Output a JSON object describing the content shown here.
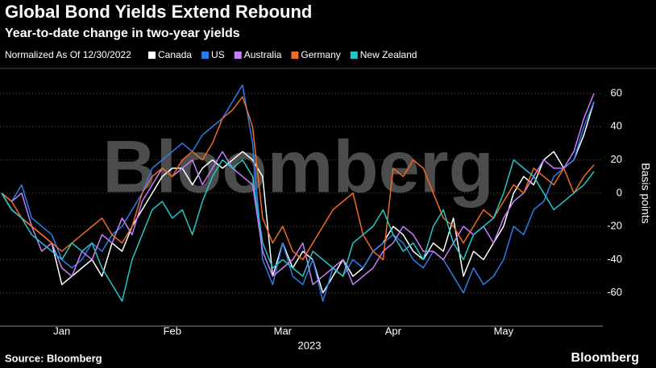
{
  "chart_data": {
    "type": "line",
    "title": "Global Bond Yields Extend Rebound",
    "subtitle": "Year-to-date change in two-year yields",
    "legend_title": "Normalized As Of 12/30/2022",
    "watermark": "Bloomberg",
    "source": "Source: Bloomberg",
    "logo": "Bloomberg",
    "ylabel": "Basis points",
    "xlabel": "2023",
    "categories": [
      null,
      null,
      null,
      null,
      null,
      null,
      "Jan",
      null,
      null,
      null,
      null,
      null,
      null,
      null,
      null,
      null,
      null,
      "Feb",
      null,
      null,
      null,
      null,
      null,
      null,
      null,
      null,
      null,
      null,
      "Mar",
      null,
      null,
      null,
      null,
      null,
      null,
      null,
      null,
      null,
      null,
      "Apr",
      null,
      null,
      null,
      null,
      null,
      null,
      null,
      null,
      null,
      null,
      "May",
      null,
      null,
      null,
      null,
      null,
      null,
      null,
      null,
      null
    ],
    "series": [
      {
        "name": "Canada",
        "color": "#ffffff",
        "values": [
          0,
          -10,
          -15,
          -20,
          -25,
          -30,
          -55,
          -50,
          -45,
          -40,
          -50,
          -30,
          -35,
          -20,
          -10,
          0,
          10,
          15,
          15,
          5,
          15,
          20,
          15,
          20,
          25,
          20,
          10,
          -50,
          -30,
          -45,
          -35,
          -40,
          -60,
          -50,
          -40,
          -50,
          -45,
          -35,
          -30,
          -20,
          -25,
          -35,
          -40,
          -30,
          -35,
          -15,
          -50,
          -35,
          -40,
          -30,
          -20,
          0,
          10,
          5,
          20,
          25,
          15,
          20,
          35,
          55
        ]
      },
      {
        "name": "US",
        "color": "#2b7de9",
        "values": [
          0,
          -5,
          5,
          -15,
          -20,
          -25,
          -40,
          -45,
          -40,
          -30,
          -35,
          -25,
          -20,
          -10,
          0,
          15,
          20,
          25,
          30,
          25,
          35,
          40,
          45,
          55,
          65,
          30,
          -40,
          -55,
          -30,
          -50,
          -55,
          -40,
          -65,
          -45,
          -50,
          -40,
          -45,
          -35,
          -30,
          -25,
          -30,
          -40,
          -45,
          -35,
          -40,
          -50,
          -60,
          -45,
          -55,
          -50,
          -40,
          -20,
          -25,
          -10,
          -5,
          10,
          15,
          20,
          40,
          55
        ]
      },
      {
        "name": "Australia",
        "color": "#c77dff",
        "values": [
          0,
          -5,
          0,
          -20,
          -35,
          -30,
          -45,
          -50,
          -35,
          -40,
          -25,
          -30,
          -15,
          -25,
          -5,
          5,
          15,
          10,
          15,
          20,
          5,
          15,
          25,
          15,
          10,
          5,
          -35,
          -50,
          -45,
          -40,
          -30,
          -55,
          -50,
          -45,
          -40,
          -55,
          -50,
          -45,
          -35,
          -30,
          -20,
          -25,
          -35,
          -35,
          -40,
          -30,
          -20,
          -25,
          -20,
          -30,
          -15,
          -5,
          0,
          10,
          20,
          15,
          15,
          25,
          45,
          60
        ]
      },
      {
        "name": "Germany",
        "color": "#f06b24",
        "values": [
          0,
          -5,
          -15,
          -20,
          -25,
          -30,
          -35,
          -30,
          -25,
          -20,
          -15,
          -25,
          -30,
          -20,
          0,
          10,
          15,
          10,
          20,
          25,
          20,
          30,
          45,
          50,
          58,
          40,
          -15,
          -30,
          -20,
          -35,
          -40,
          -30,
          -20,
          -10,
          -5,
          0,
          -25,
          -35,
          -40,
          15,
          10,
          20,
          15,
          0,
          -15,
          -20,
          -30,
          -20,
          -10,
          -15,
          -5,
          5,
          0,
          15,
          10,
          5,
          15,
          0,
          10,
          17
        ]
      },
      {
        "name": "New Zealand",
        "color": "#22c8c8",
        "values": [
          0,
          -10,
          -15,
          -25,
          -30,
          -35,
          -40,
          -30,
          -35,
          -30,
          -45,
          -55,
          -65,
          -40,
          -25,
          -10,
          -5,
          -15,
          -10,
          -25,
          -5,
          10,
          20,
          15,
          20,
          10,
          -30,
          -45,
          -40,
          -45,
          -50,
          -35,
          -40,
          -45,
          -50,
          -30,
          -25,
          -20,
          -10,
          -25,
          -35,
          -30,
          -40,
          -20,
          -10,
          -30,
          -40,
          -25,
          -20,
          -15,
          0,
          20,
          15,
          10,
          0,
          -10,
          -5,
          0,
          5,
          13
        ]
      }
    ],
    "ylim": [
      -80,
      75
    ],
    "yticks": [
      -60,
      -40,
      -20,
      0,
      20,
      40,
      60
    ],
    "grid": true,
    "y_axis_side": "right"
  }
}
